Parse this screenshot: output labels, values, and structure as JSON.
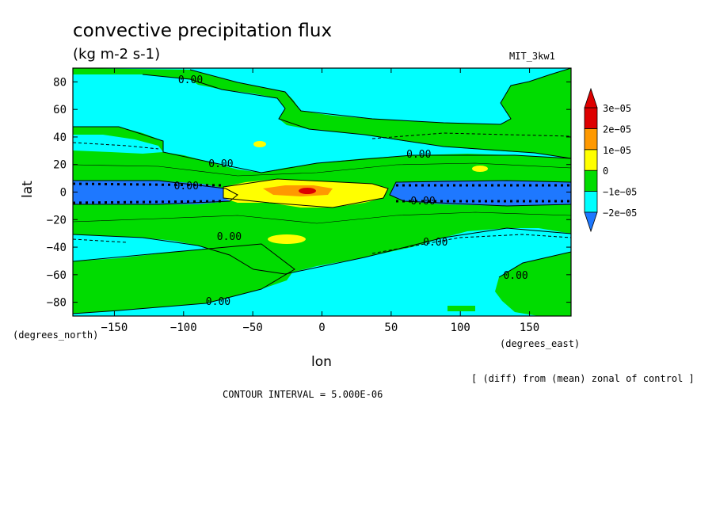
{
  "chart_data": {
    "type": "contour",
    "title": "convective precipitation flux",
    "units": "(kg m-2 s-1)",
    "model": "MIT_3kw1",
    "xlabel": "lon",
    "ylabel": "lat",
    "x_units_label": "(degrees_east)",
    "y_units_label": "(degrees_north)",
    "xlim": [
      -180,
      180
    ],
    "ylim": [
      -90,
      90
    ],
    "x_ticks": [
      -150,
      -100,
      -50,
      0,
      50,
      100,
      150
    ],
    "y_ticks": [
      -80,
      -60,
      -40,
      -20,
      0,
      20,
      40,
      60,
      80
    ],
    "x_tick_labels": [
      "−150",
      "−100",
      "−50",
      "0",
      "50",
      "100",
      "150"
    ],
    "y_tick_labels": [
      "−80",
      "−60",
      "−40",
      "−20",
      "0",
      "20",
      "40",
      "60",
      "80"
    ],
    "colorbar": {
      "levels": [
        -2e-05,
        -1e-05,
        0,
        1e-05,
        2e-05,
        3e-05
      ],
      "level_labels": [
        "−2e−05",
        "−1e−05",
        "0",
        "1e−05",
        "2e−05",
        "3e−05"
      ],
      "colors": [
        "#1e78ff",
        "#00ffff",
        "#00dc00",
        "#ffff00",
        "#ff9900",
        "#dd0000"
      ],
      "low_end_color": "#1e78ff",
      "high_end_color": "#dd0000"
    },
    "contour_interval_text": "CONTOUR INTERVAL = 5.000E-06",
    "contour_labels": [
      {
        "text": "0.00",
        "lon": -95,
        "lat": 82
      },
      {
        "text": "0.00",
        "lon": 70,
        "lat": 28
      },
      {
        "text": "0.00",
        "lon": -73,
        "lat": 21
      },
      {
        "text": "0.00",
        "lon": -98,
        "lat": 5
      },
      {
        "text": "0.00",
        "lon": 73,
        "lat": -6
      },
      {
        "text": "0.00",
        "lon": -67,
        "lat": -32
      },
      {
        "text": "0.00",
        "lon": 82,
        "lat": -36
      },
      {
        "text": "0.00",
        "lon": 140,
        "lat": -60
      },
      {
        "text": "0.00",
        "lon": -75,
        "lat": -79
      }
    ],
    "note": "[ (diff) from (mean) zonal of control ]"
  }
}
